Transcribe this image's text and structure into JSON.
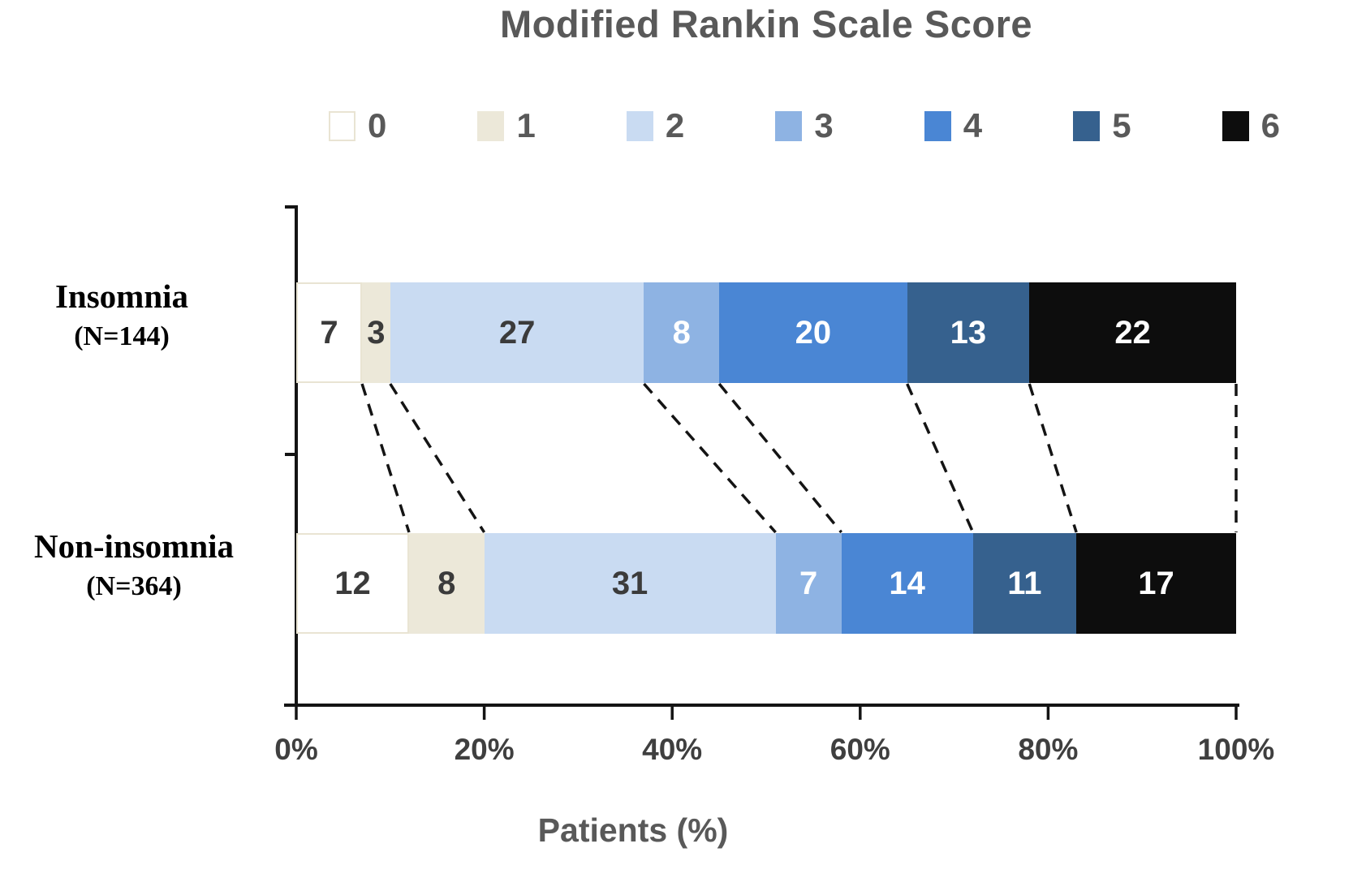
{
  "title": "Modified Rankin Scale Score",
  "xlabel": "Patients (%)",
  "legend": {
    "items": [
      {
        "label": "0",
        "color": "#ffffff",
        "border": "#e9e4d3"
      },
      {
        "label": "1",
        "color": "#ece8d9",
        "border": "#ece8d9"
      },
      {
        "label": "2",
        "color": "#c9dbf2",
        "border": "#c9dbf2"
      },
      {
        "label": "3",
        "color": "#8eb3e3",
        "border": "#8eb3e3"
      },
      {
        "label": "4",
        "color": "#4a86d4",
        "border": "#4a86d4"
      },
      {
        "label": "5",
        "color": "#36618e",
        "border": "#36618e"
      },
      {
        "label": "6",
        "color": "#0d0d0d",
        "border": "#0d0d0d"
      }
    ]
  },
  "chart_data": {
    "type": "bar",
    "subtype": "horizontal-stacked-percent",
    "title": "Modified Rankin Scale Score",
    "xlabel": "Patients (%)",
    "xlim": [
      0,
      100
    ],
    "x_ticks": [
      "0%",
      "20%",
      "40%",
      "60%",
      "80%",
      "100%"
    ],
    "x_tick_values": [
      0,
      20,
      40,
      60,
      80,
      100
    ],
    "legend_position": "top",
    "legend_labels": [
      "0",
      "1",
      "2",
      "3",
      "4",
      "5",
      "6"
    ],
    "colors": [
      "#ffffff",
      "#ece8d9",
      "#c9dbf2",
      "#8eb3e3",
      "#4a86d4",
      "#36618e",
      "#0d0d0d"
    ],
    "text_colors": [
      "#3b3b3b",
      "#3b3b3b",
      "#3b3b3b",
      "#ffffff",
      "#ffffff",
      "#ffffff",
      "#ffffff"
    ],
    "categories": [
      {
        "label": "Insomnia",
        "sublabel": "(N=144)"
      },
      {
        "label": "Non-insomnia",
        "sublabel": "(N=364)"
      }
    ],
    "series": [
      {
        "name": "0",
        "values": [
          7,
          12
        ]
      },
      {
        "name": "1",
        "values": [
          3,
          8
        ]
      },
      {
        "name": "2",
        "values": [
          27,
          31
        ]
      },
      {
        "name": "3",
        "values": [
          8,
          7
        ]
      },
      {
        "name": "4",
        "values": [
          20,
          14
        ]
      },
      {
        "name": "5",
        "values": [
          13,
          11
        ]
      },
      {
        "name": "6",
        "values": [
          22,
          17
        ]
      }
    ],
    "connectors": {
      "style": "dashed",
      "color": "#141414",
      "description": "dashed lines joining cumulative segment boundaries of the two bars, including a vertical dashed line at 100%"
    },
    "grid": false
  }
}
